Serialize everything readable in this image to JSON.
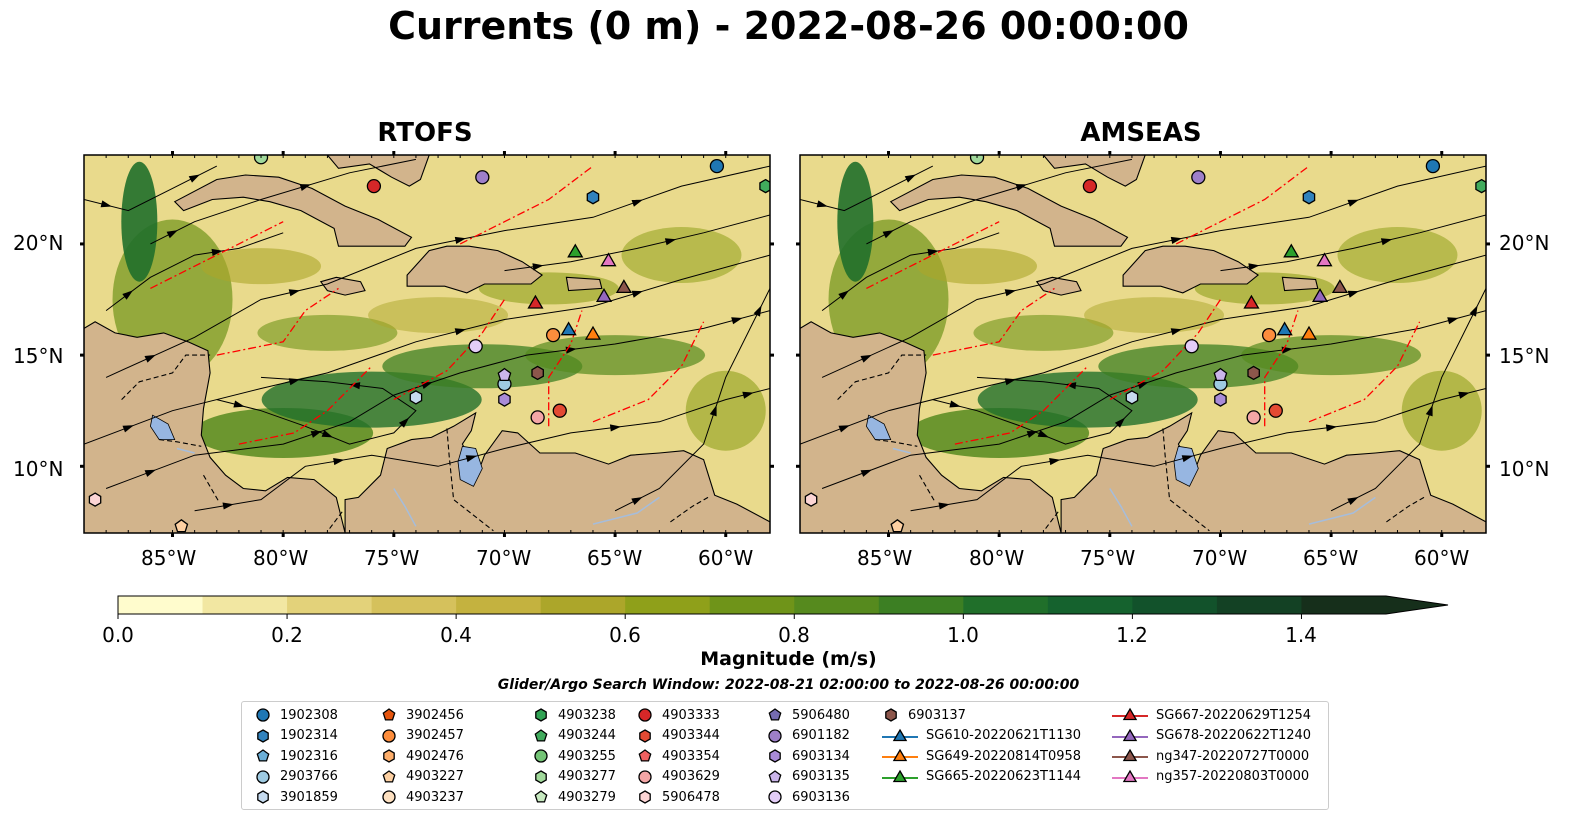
{
  "title": "Currents (0 m) - 2022-08-26 00:00:00",
  "panels": [
    {
      "id": "rtofs",
      "title": "RTOFS",
      "accent": "#2a7d1a",
      "pacific_water": false
    },
    {
      "id": "amseas",
      "title": "AMSEAS",
      "accent": "#2a7d1a",
      "pacific_water": true
    }
  ],
  "map": {
    "lon_range": [
      -89.0,
      -58.0
    ],
    "lat_range": [
      7.0,
      24.0
    ],
    "lon_ticks": [
      "85°W",
      "80°W",
      "75°W",
      "70°W",
      "65°W",
      "60°W"
    ],
    "lat_ticks": [
      "20°N",
      "15°N",
      "10°N"
    ],
    "colors": {
      "land": "#d2b48c",
      "water": "#97b6e1",
      "eez": "#ff0000",
      "border": "#000000",
      "river": "#a6bddb"
    }
  },
  "colorbar": {
    "label": "Magnitude (m/s)",
    "ticks": [
      "0.0",
      "0.2",
      "0.4",
      "0.6",
      "0.8",
      "1.0",
      "1.2",
      "1.4"
    ],
    "range": [
      0.0,
      1.5
    ],
    "extend": "max",
    "colors": [
      "#fffccd",
      "#f2e7a2",
      "#e3d27a",
      "#d5c15c",
      "#c4b23f",
      "#aca62a",
      "#8fa01a",
      "#6f9419",
      "#568a1e",
      "#3c7f23",
      "#206f2a",
      "#15622e",
      "#12522b",
      "#134124",
      "#162f1b"
    ]
  },
  "search_window": "Glider/Argo Search Window: 2022-08-21 02:00:00 to 2022-08-26 00:00:00",
  "legend": {
    "columns": [
      [
        {
          "label": "1902308",
          "marker": "circle",
          "color": "#1f77b4"
        },
        {
          "label": "1902314",
          "marker": "hexagon",
          "color": "#3182bd"
        },
        {
          "label": "1902316",
          "marker": "pentagon",
          "color": "#6baed6"
        },
        {
          "label": "2903766",
          "marker": "circle",
          "color": "#9ecae1"
        },
        {
          "label": "3901859",
          "marker": "hexagon",
          "color": "#c6dbef"
        }
      ],
      [
        {
          "label": "3902456",
          "marker": "pentagon",
          "color": "#e6550d"
        },
        {
          "label": "3902457",
          "marker": "circle",
          "color": "#fd8d3c"
        },
        {
          "label": "4902476",
          "marker": "hexagon",
          "color": "#fdae6b"
        },
        {
          "label": "4903227",
          "marker": "pentagon",
          "color": "#fdd0a2"
        },
        {
          "label": "4903237",
          "marker": "circle",
          "color": "#fde0c0"
        }
      ],
      [
        {
          "label": "4903238",
          "marker": "hexagon",
          "color": "#31a354"
        },
        {
          "label": "4903244",
          "marker": "pentagon",
          "color": "#41ab5d"
        },
        {
          "label": "4903255",
          "marker": "circle",
          "color": "#74c476"
        },
        {
          "label": "4903277",
          "marker": "hexagon",
          "color": "#a1d99b"
        },
        {
          "label": "4903279",
          "marker": "pentagon",
          "color": "#c7e9c0"
        }
      ],
      [
        {
          "label": "4903333",
          "marker": "circle",
          "color": "#d62728"
        },
        {
          "label": "4903344",
          "marker": "hexagon",
          "color": "#e34a33"
        },
        {
          "label": "4903354",
          "marker": "pentagon",
          "color": "#f06060"
        },
        {
          "label": "4903629",
          "marker": "circle",
          "color": "#f4a6a6"
        },
        {
          "label": "5906478",
          "marker": "hexagon",
          "color": "#fcd5d5"
        }
      ],
      [
        {
          "label": "5906480",
          "marker": "pentagon",
          "color": "#756bb1"
        },
        {
          "label": "6901182",
          "marker": "circle",
          "color": "#9e7fc9"
        },
        {
          "label": "6903134",
          "marker": "hexagon",
          "color": "#a98bd8"
        },
        {
          "label": "6903135",
          "marker": "pentagon",
          "color": "#cbb5ea"
        },
        {
          "label": "6903136",
          "marker": "circle",
          "color": "#e3cdf7"
        }
      ],
      [
        {
          "label": "6903137",
          "marker": "hexagon",
          "color": "#8c564b"
        },
        {
          "label": "SG610-20220621T1130",
          "marker": "triangle",
          "color": "#1f77b4"
        },
        {
          "label": "SG649-20220814T0958",
          "marker": "triangle",
          "color": "#ff7f0e"
        },
        {
          "label": "SG665-20220623T1144",
          "marker": "triangle",
          "color": "#2ca02c"
        }
      ],
      [
        {
          "label": "SG667-20220629T1254",
          "marker": "triangle",
          "color": "#d62728"
        },
        {
          "label": "SG678-20220622T1240",
          "marker": "triangle",
          "color": "#9467bd"
        },
        {
          "label": "ng347-20220727T0000",
          "marker": "triangle",
          "color": "#8c564b"
        },
        {
          "label": "ng357-20220803T0000",
          "marker": "triangle",
          "color": "#e377c2"
        }
      ]
    ]
  },
  "platforms": [
    {
      "lon": -60.4,
      "lat": 23.5,
      "marker": "circle",
      "color": "#1f77b4"
    },
    {
      "lon": -66.0,
      "lat": 22.1,
      "marker": "hexagon",
      "color": "#3182bd"
    },
    {
      "lon": -70.0,
      "lat": 13.7,
      "marker": "circle",
      "color": "#9ecae1"
    },
    {
      "lon": -74.0,
      "lat": 13.1,
      "marker": "hexagon",
      "color": "#c6dbef"
    },
    {
      "lon": -67.8,
      "lat": 15.9,
      "marker": "circle",
      "color": "#fd8d3c"
    },
    {
      "lon": -84.6,
      "lat": 7.3,
      "marker": "pentagon",
      "color": "#fdd0a2"
    },
    {
      "lon": -58.2,
      "lat": 22.6,
      "marker": "hexagon",
      "color": "#41ab5d"
    },
    {
      "lon": -81.0,
      "lat": 23.9,
      "marker": "circle",
      "color": "#a1d99b"
    },
    {
      "lon": -75.9,
      "lat": 22.6,
      "marker": "circle",
      "color": "#d62728"
    },
    {
      "lon": -67.5,
      "lat": 12.5,
      "marker": "circle",
      "color": "#e34a33"
    },
    {
      "lon": -68.5,
      "lat": 12.2,
      "marker": "circle",
      "color": "#f4a6a6"
    },
    {
      "lon": -88.5,
      "lat": 8.5,
      "marker": "hexagon",
      "color": "#fcd5d5"
    },
    {
      "lon": -71.0,
      "lat": 23.0,
      "marker": "circle",
      "color": "#9e7fc9"
    },
    {
      "lon": -70.0,
      "lat": 14.1,
      "marker": "pentagon",
      "color": "#cbb5ea"
    },
    {
      "lon": -70.0,
      "lat": 13.0,
      "marker": "hexagon",
      "color": "#a98bd8"
    },
    {
      "lon": -71.3,
      "lat": 15.4,
      "marker": "circle",
      "color": "#e3cdf7"
    },
    {
      "lon": -68.5,
      "lat": 14.2,
      "marker": "hexagon",
      "color": "#8c564b"
    },
    {
      "lon": -67.1,
      "lat": 16.1,
      "marker": "triangle",
      "color": "#1f77b4"
    },
    {
      "lon": -66.0,
      "lat": 15.9,
      "marker": "triangle",
      "color": "#ff7f0e"
    },
    {
      "lon": -66.8,
      "lat": 19.6,
      "marker": "triangle",
      "color": "#2ca02c"
    },
    {
      "lon": -68.6,
      "lat": 17.3,
      "marker": "triangle",
      "color": "#d62728"
    },
    {
      "lon": -65.5,
      "lat": 17.6,
      "marker": "triangle",
      "color": "#9467bd"
    },
    {
      "lon": -64.6,
      "lat": 18.0,
      "marker": "triangle",
      "color": "#8c564b"
    },
    {
      "lon": -65.3,
      "lat": 19.2,
      "marker": "triangle",
      "color": "#e377c2"
    }
  ]
}
